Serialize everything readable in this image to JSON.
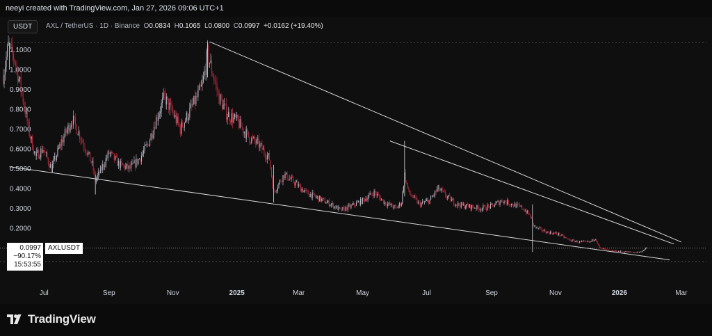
{
  "header": {
    "credit": "neeyi created with TradingView.com, Jan 27, 2026 09:06 UTC+1"
  },
  "toolbar": {
    "currency": "USDT"
  },
  "legend": {
    "symbol": "AXL / TetherUS · 1D · Binance",
    "open_label": "O",
    "open": "0.0834",
    "high_label": "H",
    "high": "0.1065",
    "low_label": "L",
    "low": "0.0800",
    "close_label": "C",
    "close": "0.0997",
    "change": "+0.0162 (+19.40%)"
  },
  "price_label": {
    "price": "0.0997",
    "change": "−90.17%",
    "timer": "15:53:55",
    "symbol": "AXLUSDT"
  },
  "footer": {
    "brand": "TradingView"
  },
  "colors": {
    "up": "#b2b5be",
    "down": "#b3283a",
    "background": "#0f0f10",
    "trendline": "#d9d9d9"
  },
  "chart_data": {
    "type": "candlestick",
    "y_ticks": [
      "1.1000",
      "1.0000",
      "0.9000",
      "0.8000",
      "0.7000",
      "0.6000",
      "0.5000",
      "0.4000",
      "0.3000",
      "0.2000"
    ],
    "ylim": [
      0.0,
      1.16
    ],
    "x_ticks": [
      "Jul",
      "Sep",
      "Nov",
      "2025",
      "Mar",
      "May",
      "Jul",
      "Sep",
      "Nov",
      "2026",
      "Mar"
    ],
    "x_tick_dates": [
      "2024-07-01",
      "2024-09-01",
      "2024-11-01",
      "2025-01-01",
      "2025-03-01",
      "2025-05-01",
      "2025-07-01",
      "2025-09-01",
      "2025-11-01",
      "2026-01-01",
      "2026-03-01"
    ],
    "xlim": [
      "2024-05-20",
      "2026-03-25"
    ],
    "price_path": [
      [
        "2024-05-23",
        0.97
      ],
      [
        "2024-05-28",
        1.12
      ],
      [
        "2024-06-03",
        1.05
      ],
      [
        "2024-06-10",
        0.88
      ],
      [
        "2024-06-17",
        0.68
      ],
      [
        "2024-06-23",
        0.56
      ],
      [
        "2024-06-30",
        0.6
      ],
      [
        "2024-07-08",
        0.5
      ],
      [
        "2024-07-18",
        0.64
      ],
      [
        "2024-07-28",
        0.75
      ],
      [
        "2024-08-05",
        0.66
      ],
      [
        "2024-08-10",
        0.6
      ],
      [
        "2024-08-16",
        0.52
      ],
      [
        "2024-08-19",
        0.44
      ],
      [
        "2024-08-25",
        0.5
      ],
      [
        "2024-09-01",
        0.58
      ],
      [
        "2024-09-11",
        0.52
      ],
      [
        "2024-09-21",
        0.5
      ],
      [
        "2024-09-30",
        0.55
      ],
      [
        "2024-10-08",
        0.62
      ],
      [
        "2024-10-16",
        0.75
      ],
      [
        "2024-10-24",
        0.86
      ],
      [
        "2024-11-01",
        0.78
      ],
      [
        "2024-11-08",
        0.7
      ],
      [
        "2024-11-14",
        0.76
      ],
      [
        "2024-11-24",
        0.86
      ],
      [
        "2024-11-29",
        0.92
      ],
      [
        "2024-12-04",
        1.08
      ],
      [
        "2024-12-08",
        1.0
      ],
      [
        "2024-12-15",
        0.86
      ],
      [
        "2024-12-22",
        0.78
      ],
      [
        "2025-01-01",
        0.74
      ],
      [
        "2025-01-12",
        0.66
      ],
      [
        "2025-01-22",
        0.62
      ],
      [
        "2025-02-01",
        0.55
      ],
      [
        "2025-02-05",
        0.38
      ],
      [
        "2025-02-15",
        0.47
      ],
      [
        "2025-02-25",
        0.43
      ],
      [
        "2025-03-08",
        0.38
      ],
      [
        "2025-03-20",
        0.35
      ],
      [
        "2025-04-01",
        0.32
      ],
      [
        "2025-04-10",
        0.29
      ],
      [
        "2025-04-20",
        0.31
      ],
      [
        "2025-05-01",
        0.34
      ],
      [
        "2025-05-12",
        0.38
      ],
      [
        "2025-05-22",
        0.33
      ],
      [
        "2025-06-02",
        0.3
      ],
      [
        "2025-06-07",
        0.33
      ],
      [
        "2025-06-10",
        0.47
      ],
      [
        "2025-06-14",
        0.38
      ],
      [
        "2025-06-24",
        0.32
      ],
      [
        "2025-07-04",
        0.34
      ],
      [
        "2025-07-12",
        0.4
      ],
      [
        "2025-07-20",
        0.36
      ],
      [
        "2025-07-30",
        0.32
      ],
      [
        "2025-08-10",
        0.31
      ],
      [
        "2025-08-22",
        0.3
      ],
      [
        "2025-09-01",
        0.31
      ],
      [
        "2025-09-11",
        0.34
      ],
      [
        "2025-09-21",
        0.32
      ],
      [
        "2025-10-01",
        0.3
      ],
      [
        "2025-10-08",
        0.26
      ],
      [
        "2025-10-10",
        0.22
      ],
      [
        "2025-10-14",
        0.2
      ],
      [
        "2025-10-24",
        0.18
      ],
      [
        "2025-11-04",
        0.17
      ],
      [
        "2025-11-14",
        0.14
      ],
      [
        "2025-11-24",
        0.13
      ],
      [
        "2025-12-04",
        0.13
      ],
      [
        "2025-12-09",
        0.15
      ],
      [
        "2025-12-13",
        0.1
      ],
      [
        "2025-12-23",
        0.085
      ],
      [
        "2026-01-04",
        0.082
      ],
      [
        "2026-01-14",
        0.078
      ],
      [
        "2026-01-21",
        0.08
      ],
      [
        "2026-01-27",
        0.0997
      ]
    ],
    "spikes": [
      {
        "date": "2024-05-29",
        "high": 1.135,
        "low": 1.0
      },
      {
        "date": "2024-12-04",
        "high": 1.14,
        "low": 0.96
      },
      {
        "date": "2024-08-19",
        "high": 0.47,
        "low": 0.37
      },
      {
        "date": "2025-06-10",
        "high": 0.64,
        "low": 0.36
      },
      {
        "date": "2025-10-10",
        "high": 0.32,
        "low": 0.08
      },
      {
        "date": "2025-02-05",
        "high": 0.52,
        "low": 0.33
      }
    ],
    "trendlines": [
      {
        "from": [
          "2024-12-06",
          1.14
        ],
        "to": [
          "2026-03-01",
          0.13
        ]
      },
      {
        "from": [
          "2025-05-27",
          0.64
        ],
        "to": [
          "2026-02-22",
          0.12
        ]
      },
      {
        "from": [
          "2024-05-29",
          0.51
        ],
        "to": [
          "2026-02-18",
          0.04
        ]
      }
    ],
    "last_price": 0.0997
  }
}
